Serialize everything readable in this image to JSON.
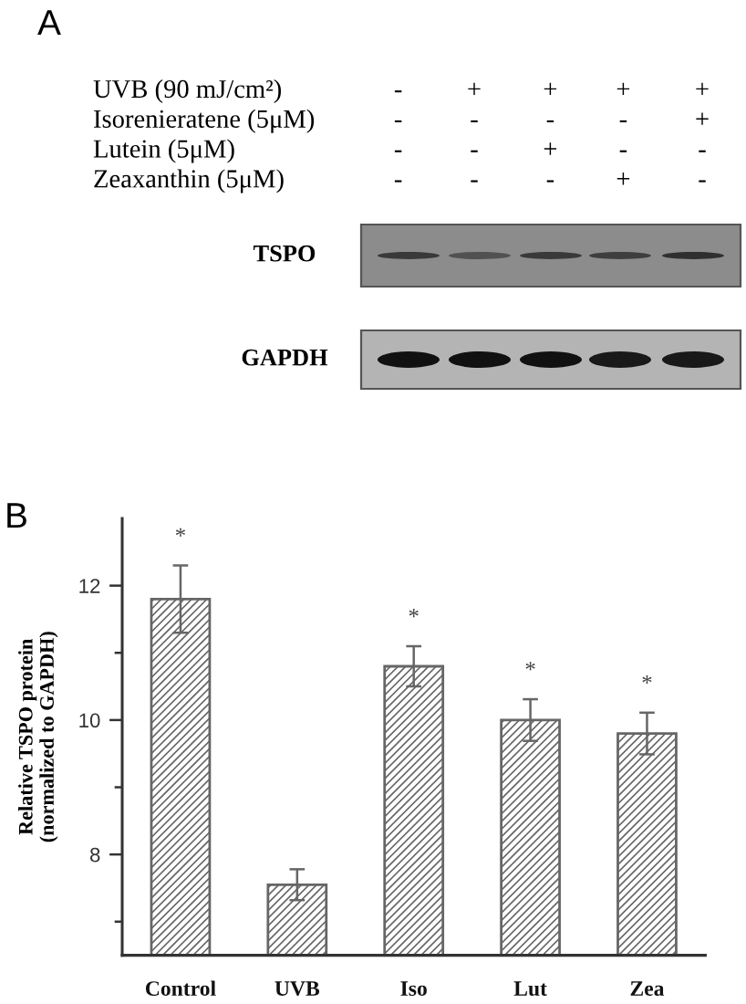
{
  "chart_data": [
    {
      "type": "other",
      "title": "A",
      "annotations": [
        "UVB (90 mJ/cm²)",
        "-",
        "+",
        "+",
        "+",
        "+",
        "Isorenieratene (5μM)",
        "-",
        "-",
        "-",
        "-",
        "+",
        "Lutein (5μM)",
        "-",
        "-",
        "+",
        "-",
        "-",
        "Zeaxanthin (5μM)",
        "-",
        "-",
        "-",
        "+",
        "-",
        "TSPO",
        "GAPDH"
      ]
    },
    {
      "type": "bar",
      "title": "B",
      "ylabel": "Relative TSPO protein\n(normalized to GAPDH)",
      "categories": [
        "Control",
        "UVB",
        "Iso",
        "Lut",
        "Zea"
      ],
      "values": [
        11.8,
        7.55,
        10.8,
        10.0,
        9.8
      ],
      "errors": [
        0.5,
        0.23,
        0.3,
        0.31,
        0.31
      ],
      "value_labels": [
        "*",
        null,
        "*",
        "*",
        "*"
      ],
      "color": "#666666",
      "ylim": [
        6.5,
        13
      ],
      "yticks": [
        {
          "value": 7,
          "label": null
        },
        8,
        {
          "value": 9,
          "label": null
        },
        10,
        {
          "value": 11,
          "label": null
        },
        12
      ]
    }
  ]
}
